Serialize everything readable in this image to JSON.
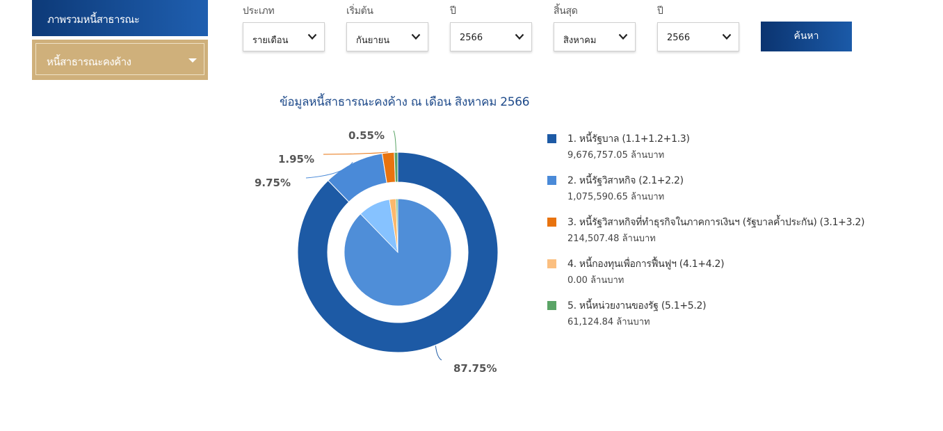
{
  "sidebar": {
    "overview": "ภาพรวมหนี้สาธารณะ",
    "outstanding": "หนี้สาธารณะคงค้าง"
  },
  "filters": {
    "type": {
      "label": "ประเภท",
      "value": "รายเดือน"
    },
    "start": {
      "label": "เริ่มต้น",
      "value": "กันยายน"
    },
    "start_year": {
      "label": "ปี",
      "value": "2566"
    },
    "end": {
      "label": "สิ้นสุด",
      "value": "สิงหาคม"
    },
    "end_year": {
      "label": "ปี",
      "value": "2566"
    },
    "search_label": "ค้นหา"
  },
  "chart_data": {
    "type": "pie",
    "title": "ข้อมูลหนี้สาธารณะคงค้าง ณ เดือน สิงหาคม 2566",
    "unit": "ล้านบาท",
    "outer_ring": {
      "slices": [
        {
          "name": "1. หนี้รัฐบาล (1.1+1.2+1.3)",
          "value": 9676757.05,
          "value_text": "9,676,757.05",
          "percent": 87.75,
          "percent_label": "87.75%",
          "color": "#1d5aa5"
        },
        {
          "name": "2. หนี้รัฐวิสาหกิจ (2.1+2.2)",
          "value": 1075590.65,
          "value_text": "1,075,590.65",
          "percent": 9.75,
          "percent_label": "9.75%",
          "color": "#4a8ad8"
        },
        {
          "name": "3. หนี้รัฐวิสาหกิจที่ทำธุรกิจในภาคการเงินฯ (รัฐบาลค้ำประกัน) (3.1+3.2)",
          "value": 214507.48,
          "value_text": "214,507.48",
          "percent": 1.95,
          "percent_label": "1.95%",
          "color": "#e8730f"
        },
        {
          "name": "4. หนี้กองทุนเพื่อการฟื้นฟูฯ (4.1+4.2)",
          "value": 0.0,
          "value_text": "0.00",
          "percent": 0.0,
          "percent_label": "",
          "color": "#fbbf80"
        },
        {
          "name": "5. หนี้หน่วยงานของรัฐ (5.1+5.2)",
          "value": 61124.84,
          "value_text": "61,124.84",
          "percent": 0.55,
          "percent_label": "0.55%",
          "color": "#5aa466"
        }
      ]
    },
    "inner_pie": {
      "slices": [
        {
          "value": 87.75,
          "color": "#4f8ed8"
        },
        {
          "value": 9.75,
          "color": "#86c2ff"
        },
        {
          "value": 1.95,
          "color": "#fcb86c"
        },
        {
          "value": 0.55,
          "color": "#7cc088"
        }
      ]
    }
  }
}
